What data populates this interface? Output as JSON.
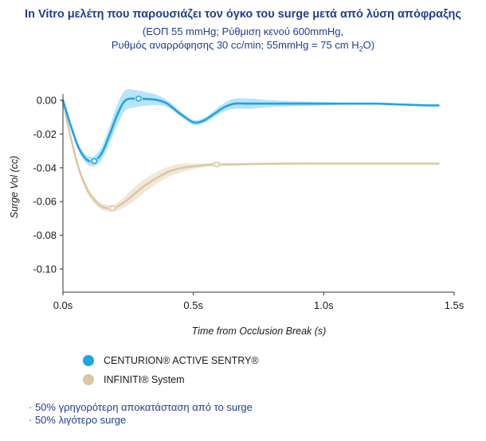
{
  "title": "In Vitro μελέτη που παρουσιάζει τον όγκο του surge μετά από λύση απόφραξης",
  "subtitle_lines": [
    "(ΕΟΠ 55 mmHg; Ρύθμιση κενού 600mmHg,",
    "Ρυθμός αναρρόφησης 30 cc/min; 55mmHg = 75 cm H",
    "2",
    "O)"
  ],
  "legend": [
    {
      "label": "CENTURION® ACTIVE SENTRY®",
      "color": "#1ba5e6"
    },
    {
      "label": "INFINITI® System",
      "color": "#dcc7a4"
    }
  ],
  "notes": [
    "· 50% γρηγορότερη αποκατάσταση από το surge",
    "· 50% λιγότερο surge"
  ],
  "chart_data": {
    "type": "line",
    "title": "In Vitro μελέτη που παρουσιάζει τον όγκο του surge μετά από λύση απόφραξης",
    "xlabel": "Time from Occlusion Break (s)",
    "ylabel": "Surge Vol (cc)",
    "xlim": [
      0,
      1.5
    ],
    "ylim": [
      -0.11,
      0.005
    ],
    "x_ticks": [
      0,
      0.5,
      1.0,
      1.5
    ],
    "x_tick_labels": [
      "0.0s",
      "0.5s",
      "1.0s",
      "1.5s"
    ],
    "y_ticks": [
      0.0,
      -0.02,
      -0.04,
      -0.06,
      -0.08,
      -0.1
    ],
    "y_tick_labels": [
      "0.00",
      "-0.02",
      "-0.04",
      "-0.06",
      "-0.08",
      "-0.10"
    ],
    "grid": false,
    "series": [
      {
        "name": "CENTURION® ACTIVE SENTRY®",
        "color": "#1ba5e6",
        "band_color": "#a8dcf5",
        "x": [
          0,
          0.03,
          0.06,
          0.09,
          0.12,
          0.15,
          0.18,
          0.21,
          0.24,
          0.28,
          0.32,
          0.36,
          0.4,
          0.45,
          0.5,
          0.54,
          0.58,
          0.62,
          0.66,
          0.72,
          0.8,
          0.9,
          1.0,
          1.1,
          1.2,
          1.3,
          1.4,
          1.44
        ],
        "y": [
          0,
          -0.015,
          -0.028,
          -0.035,
          -0.036,
          -0.031,
          -0.02,
          -0.008,
          0.0,
          0.001,
          0.0008,
          0.0002,
          -0.002,
          -0.008,
          -0.013,
          -0.012,
          -0.008,
          -0.004,
          -0.002,
          -0.002,
          -0.002,
          -0.002,
          -0.002,
          -0.002,
          -0.002,
          -0.0025,
          -0.003,
          -0.003
        ],
        "band": [
          0,
          0.001,
          0.002,
          0.0025,
          0.003,
          0.004,
          0.005,
          0.006,
          0.006,
          0.005,
          0.004,
          0.003,
          0.002,
          0.0015,
          0.0015,
          0.0015,
          0.002,
          0.0025,
          0.003,
          0.003,
          0.002,
          0.0015,
          0.001,
          0.0005,
          0.0005,
          0.0005,
          0.0005,
          0.0005
        ],
        "markers": [
          [
            0.12,
            -0.036
          ],
          [
            0.29,
            0.001
          ]
        ]
      },
      {
        "name": "INFINITI® System",
        "color": "#dcc7a4",
        "band_color": "#eee2cf",
        "x": [
          0,
          0.03,
          0.06,
          0.09,
          0.12,
          0.15,
          0.19,
          0.23,
          0.27,
          0.31,
          0.36,
          0.41,
          0.46,
          0.51,
          0.56,
          0.6,
          0.65,
          0.72,
          0.8,
          0.9,
          1.0,
          1.1,
          1.2,
          1.3,
          1.4,
          1.44
        ],
        "y": [
          0,
          -0.022,
          -0.04,
          -0.052,
          -0.059,
          -0.063,
          -0.064,
          -0.061,
          -0.056,
          -0.051,
          -0.046,
          -0.042,
          -0.04,
          -0.039,
          -0.0382,
          -0.038,
          -0.038,
          -0.0378,
          -0.0376,
          -0.0375,
          -0.0375,
          -0.0375,
          -0.0375,
          -0.0375,
          -0.0375,
          -0.0375
        ],
        "band": [
          0,
          0.001,
          0.0015,
          0.002,
          0.002,
          0.002,
          0.002,
          0.003,
          0.004,
          0.004,
          0.0035,
          0.003,
          0.0025,
          0.0015,
          0.001,
          0.0008,
          0.0006,
          0.0005,
          0.0005,
          0.0005,
          0.0005,
          0.0005,
          0.0005,
          0.0005,
          0.0005,
          0.0005
        ],
        "markers": [
          [
            0.19,
            -0.064
          ],
          [
            0.59,
            -0.038
          ]
        ]
      }
    ]
  }
}
